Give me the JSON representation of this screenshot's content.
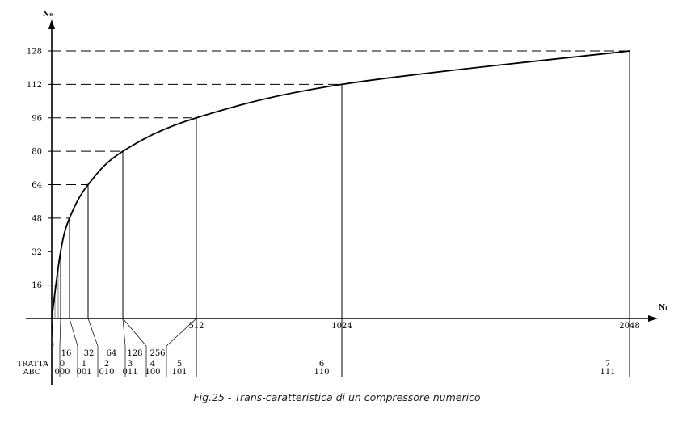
{
  "chart_data": {
    "type": "line",
    "ylabel": "N₀",
    "xlabel": "Nᵢ",
    "x_axis_labels": [
      "512",
      "1024",
      "2048"
    ],
    "y_ticks": [
      "16",
      "32",
      "48",
      "64",
      "80",
      "96",
      "112",
      "128"
    ],
    "ylim": [
      0,
      128
    ],
    "xlim": [
      0,
      2048
    ],
    "grid": false,
    "series": [
      {
        "x": [
          0,
          16,
          32,
          64,
          128,
          256,
          512,
          1024,
          2048
        ],
        "y": [
          0,
          16,
          32,
          48,
          64,
          80,
          96,
          112,
          128
        ]
      }
    ],
    "segment_values": [
      "16",
      "32",
      "64",
      "128",
      "256"
    ],
    "row_labels": {
      "tratta": "TRATTA",
      "abc": "ABC"
    },
    "segments": [
      {
        "tratta": "0",
        "abc": "000"
      },
      {
        "tratta": "1",
        "abc": "001"
      },
      {
        "tratta": "2",
        "abc": "010"
      },
      {
        "tratta": "3",
        "abc": "011"
      },
      {
        "tratta": "4",
        "abc": "100"
      },
      {
        "tratta": "5",
        "abc": "101"
      },
      {
        "tratta": "6",
        "abc": "110"
      },
      {
        "tratta": "7",
        "abc": "111"
      }
    ]
  },
  "caption": "Fig.25 - Trans-caratteristica di un compressore numerico"
}
